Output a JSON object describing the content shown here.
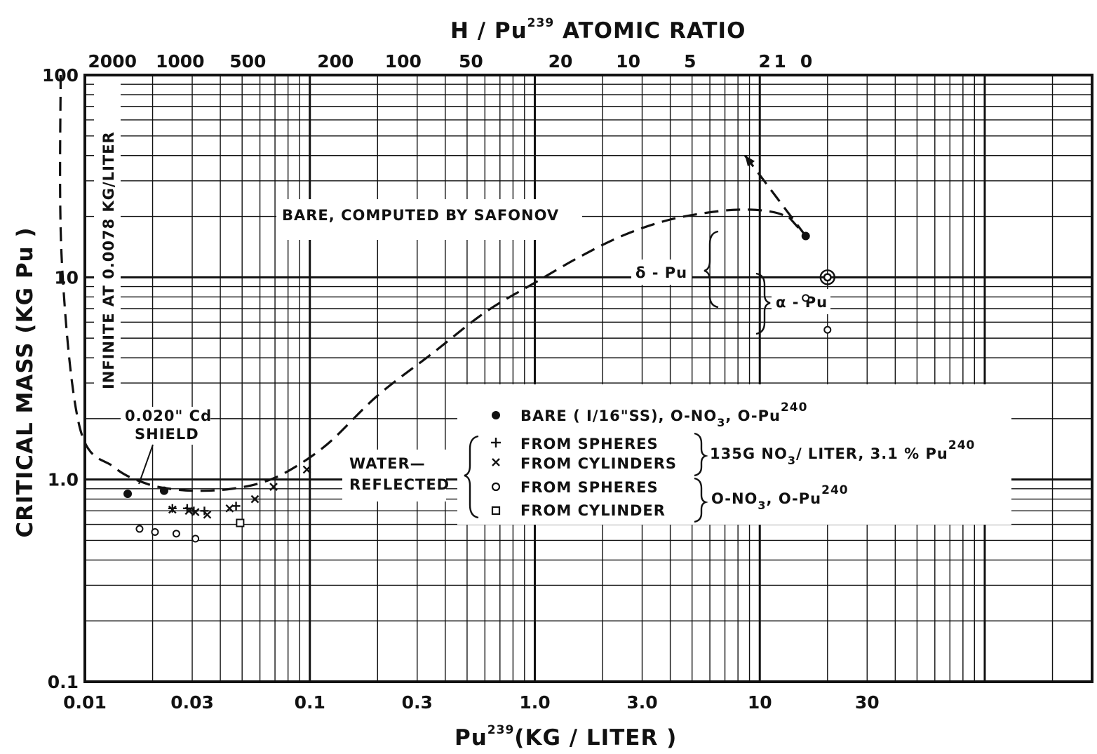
{
  "chart_data": {
    "type": "scatter",
    "x_scale": "log",
    "y_scale": "log",
    "xlim": [
      0.01,
      300
    ],
    "ylim": [
      0.1,
      100
    ],
    "top_xlim": [
      2000,
      0
    ],
    "grid": true,
    "top_axis": {
      "label_main": "H / Pu",
      "label_sup": "239",
      "label_rest": " ATOMIC RATIO",
      "ticks": [
        {
          "label": "2000",
          "x": 0.01325
        },
        {
          "label": "1000",
          "x": 0.0265
        },
        {
          "label": "500",
          "x": 0.053
        },
        {
          "label": "200",
          "x": 0.13
        },
        {
          "label": "100",
          "x": 0.26
        },
        {
          "label": "50",
          "x": 0.52
        },
        {
          "label": "20",
          "x": 1.3
        },
        {
          "label": "10",
          "x": 2.6
        },
        {
          "label": "5",
          "x": 4.9
        },
        {
          "label": "2",
          "x": 10.5
        },
        {
          "label": "1",
          "x": 12.3
        },
        {
          "label": "0",
          "x": 16.1
        }
      ]
    },
    "x_axis": {
      "label_main": "Pu",
      "label_sup": "239",
      "label_rest": "(KG / LITER )",
      "ticks": [
        {
          "label": "0.01",
          "x": 0.01
        },
        {
          "label": "0.03",
          "x": 0.03
        },
        {
          "label": "0.1",
          "x": 0.1
        },
        {
          "label": "0.3",
          "x": 0.3
        },
        {
          "label": "1.0",
          "x": 1.0
        },
        {
          "label": "3.0",
          "x": 3.0
        },
        {
          "label": "10",
          "x": 10
        },
        {
          "label": "30",
          "x": 30
        }
      ]
    },
    "y_axis": {
      "label": "CRITICAL MASS (KG Pu )",
      "ticks": [
        {
          "label": "0.1",
          "y": 0.1
        },
        {
          "label": "1.0",
          "y": 1.0
        },
        {
          "label": "10",
          "y": 10
        },
        {
          "label": "100",
          "y": 100
        }
      ]
    },
    "annotations": {
      "infinite": "INFINITE AT 0.0078 KG/LITER",
      "safonov": "BARE, COMPUTED BY SAFONOV",
      "cd_shield_1": "0.020\" Cd",
      "cd_shield_2": "SHIELD",
      "water_1": "WATER—",
      "water_2": "REFLECTED",
      "delta_pu": "δ - Pu",
      "alpha_pu": "α - Pu"
    },
    "legend": {
      "bare_text": "BARE ( I/16\"SS), O-NO",
      "bare_sub": "3",
      "bare_text2": ", O-Pu",
      "bare_sup": "240",
      "spheres_nitrate": "FROM SPHERES",
      "cylinders_nitrate": "FROM CYLINDERS",
      "nitrate_group_1": "135G  NO",
      "nitrate_group_sub": "3",
      "nitrate_group_2": "/ LITER, 3.1 % Pu",
      "nitrate_group_sup": "240",
      "spheres_metal": "FROM SPHERES",
      "cylinder_metal": "FROM CYLINDER",
      "metal_group_1": "O-NO",
      "metal_group_sub": "3",
      "metal_group_2": ", O-Pu",
      "metal_group_sup": "240"
    },
    "series": [
      {
        "name": "BARE ( I/16\"SS), O-NO3, O-Pu240",
        "marker": "filled-circle",
        "points": [
          [
            0.0155,
            0.85
          ],
          [
            0.0225,
            0.88
          ],
          [
            16.0,
            16.0
          ],
          [
            20.0,
            10.0
          ]
        ]
      },
      {
        "name": "FROM SPHERES (135G NO3/LITER)",
        "marker": "plus",
        "points": [
          [
            0.0245,
            0.72
          ],
          [
            0.0285,
            0.72
          ],
          [
            0.0305,
            0.7
          ],
          [
            0.034,
            0.7
          ],
          [
            0.047,
            0.74
          ]
        ]
      },
      {
        "name": "FROM CYLINDERS (135G NO3/LITER)",
        "marker": "x",
        "points": [
          [
            0.0245,
            0.71
          ],
          [
            0.029,
            0.7
          ],
          [
            0.031,
            0.69
          ],
          [
            0.035,
            0.67
          ],
          [
            0.044,
            0.72
          ],
          [
            0.057,
            0.8
          ],
          [
            0.069,
            0.92
          ],
          [
            0.097,
            1.12
          ]
        ]
      },
      {
        "name": "FROM SPHERES (O-NO3)",
        "marker": "open-circle",
        "points": [
          [
            0.0175,
            0.57
          ],
          [
            0.0205,
            0.55
          ],
          [
            0.0255,
            0.54
          ],
          [
            0.031,
            0.51
          ],
          [
            20.0,
            10.0
          ],
          [
            16.0,
            7.9
          ],
          [
            20.0,
            5.5
          ]
        ]
      },
      {
        "name": "FROM CYLINDER (O-NO3)",
        "marker": "open-square",
        "points": [
          [
            0.049,
            0.61
          ]
        ]
      }
    ],
    "curves": [
      {
        "label": "BARE, COMPUTED BY SAFONOV",
        "style": "dashed",
        "points": [
          [
            0.0078,
            100
          ],
          [
            0.0079,
            12
          ],
          [
            0.0095,
            1.8
          ],
          [
            0.0135,
            1.15
          ],
          [
            0.019,
            0.95
          ],
          [
            0.026,
            0.89
          ],
          [
            0.034,
            0.88
          ],
          [
            0.045,
            0.9
          ],
          [
            0.06,
            0.96
          ],
          [
            0.08,
            1.1
          ],
          [
            0.12,
            1.5
          ],
          [
            0.2,
            2.6
          ],
          [
            0.35,
            4.2
          ],
          [
            0.6,
            6.7
          ],
          [
            1.0,
            9.4
          ],
          [
            1.6,
            12.7
          ],
          [
            2.5,
            16.2
          ],
          [
            4.0,
            19.3
          ],
          [
            6.5,
            21.2
          ],
          [
            9.0,
            21.6
          ],
          [
            11.5,
            21.0
          ],
          [
            13.5,
            19.8
          ]
        ]
      },
      {
        "label": "",
        "style": "dashed",
        "points": [
          [
            13.5,
            19.8
          ],
          [
            16.0,
            16.0
          ]
        ]
      },
      {
        "label": "",
        "style": "dashed-arrow",
        "points": [
          [
            16.0,
            16.0
          ],
          [
            8.6,
            40.0
          ]
        ]
      }
    ]
  }
}
